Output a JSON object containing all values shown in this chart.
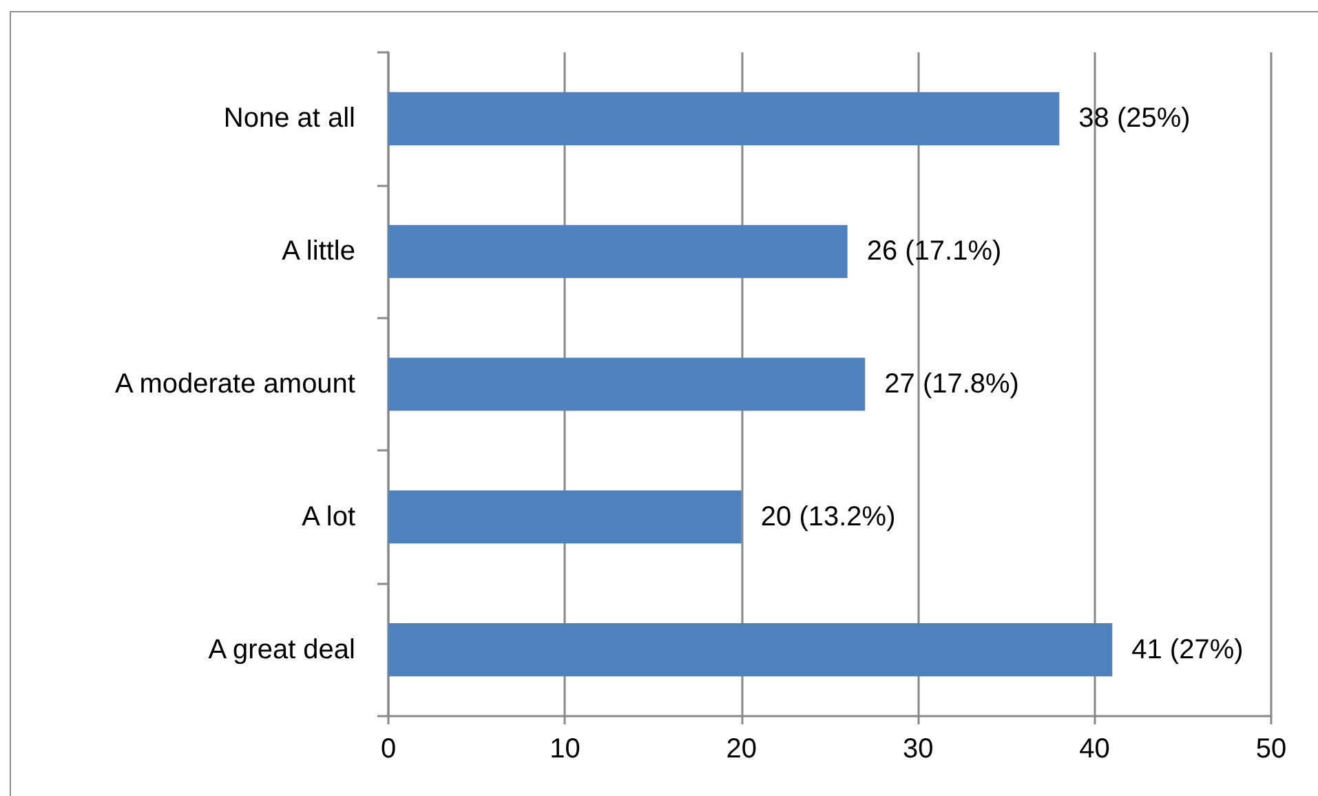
{
  "chart_data": {
    "type": "bar",
    "orientation": "horizontal",
    "categories": [
      "None at all",
      "A little",
      "A moderate amount",
      "A lot",
      "A great deal"
    ],
    "values": [
      38,
      26,
      27,
      20,
      41
    ],
    "value_labels": [
      "38 (25%)",
      "26 (17.1%)",
      "27 (17.8%)",
      "20 (13.2%)",
      "41 (27%)"
    ],
    "color": "#4f81bd",
    "xlim": [
      0,
      50
    ],
    "xticks": [
      0,
      10,
      20,
      30,
      40,
      50
    ],
    "grid": "x"
  }
}
